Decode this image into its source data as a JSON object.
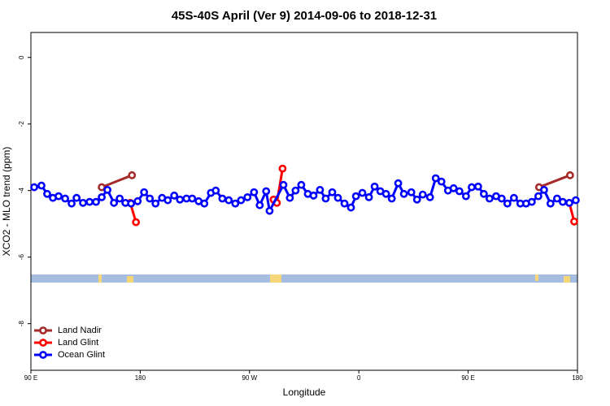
{
  "chart_data": {
    "type": "line",
    "title": "45S-40S April (Ver 9)   2014-09-06 to 2018-12-31",
    "xlabel": "Longitude",
    "ylabel": "XCO2 - MLO trend (ppm)",
    "xlim": [
      90,
      540
    ],
    "ylim": [
      -9.4,
      0.75
    ],
    "xticks": [
      {
        "value": 90,
        "label": "90 E"
      },
      180,
      {
        "value": 270,
        "label": "90 W"
      },
      {
        "value": 360,
        "label": "0"
      },
      {
        "value": 450,
        "label": "90 E"
      },
      {
        "value": 540,
        "label": "180"
      }
    ],
    "yticks": [
      0,
      -2,
      -4,
      -6,
      -8
    ],
    "legend": "bottom-left",
    "series": [
      {
        "name": "Land Nadir",
        "color": "#a52a2a",
        "x": [
          148.3,
          173.2,
          null,
          508.4,
          533.9
        ],
        "values": [
          -3.9,
          -3.54,
          null,
          -3.9,
          -3.54
        ]
      },
      {
        "name": "Land Glint",
        "color": "#ff0000",
        "x": [
          171.8,
          176.5,
          null,
          289.8,
          292.5,
          297.2,
          null,
          533.3,
          537.3
        ],
        "values": [
          -4.37,
          -4.95,
          null,
          -4.27,
          -4.37,
          -3.34,
          null,
          -4.37,
          -4.93
        ]
      },
      {
        "name": "Ocean Glint",
        "color": "#0000ff",
        "x": [
          92.7,
          98.7,
          103.4,
          108.1,
          112.8,
          118.2,
          123.5,
          127.6,
          132.9,
          138.3,
          143.6,
          148.3,
          153,
          158.4,
          163.1,
          167.8,
          172.5,
          177.9,
          183.2,
          187.9,
          192.6,
          198,
          202.7,
          208,
          212.7,
          218.1,
          222.8,
          228.1,
          232.8,
          238.2,
          242.2,
          247.6,
          252.9,
          258.3,
          263,
          268.3,
          273.7,
          278.4,
          283.7,
          286.5,
          297.9,
          303.2,
          307.9,
          312.6,
          318,
          322.7,
          328,
          332.7,
          338.1,
          342.8,
          348.2,
          353.5,
          357.6,
          362.9,
          368.3,
          373,
          377.7,
          382.4,
          387.1,
          392.4,
          397.1,
          403.2,
          407.9,
          412.6,
          418.6,
          423.3,
          428,
          433.4,
          438,
          442.8,
          448.2,
          452.9,
          458.2,
          462.9,
          467.6,
          473,
          477.6,
          482.3,
          487.7,
          493,
          497.7,
          502.4,
          507.8,
          512.5,
          517.8,
          523.2,
          527.9,
          533.3,
          538.6
        ],
        "values": [
          -3.9,
          -3.85,
          -4.1,
          -4.22,
          -4.17,
          -4.24,
          -4.39,
          -4.22,
          -4.37,
          -4.34,
          -4.34,
          -4.2,
          -3.98,
          -4.37,
          -4.24,
          -4.37,
          -4.39,
          -4.32,
          -4.05,
          -4.24,
          -4.39,
          -4.22,
          -4.29,
          -4.15,
          -4.27,
          -4.24,
          -4.24,
          -4.32,
          -4.39,
          -4.07,
          -4.0,
          -4.24,
          -4.29,
          -4.39,
          -4.29,
          -4.2,
          -4.05,
          -4.44,
          -4.02,
          -4.61,
          -3.83,
          -4.22,
          -4.0,
          -3.83,
          -4.1,
          -4.15,
          -3.98,
          -4.24,
          -4.05,
          -4.22,
          -4.39,
          -4.51,
          -4.17,
          -4.07,
          -4.2,
          -3.88,
          -4.02,
          -4.1,
          -4.24,
          -3.78,
          -4.1,
          -4.05,
          -4.27,
          -4.12,
          -4.2,
          -3.63,
          -3.73,
          -4.0,
          -3.93,
          -4.02,
          -4.17,
          -3.9,
          -3.88,
          -4.1,
          -4.24,
          -4.17,
          -4.24,
          -4.39,
          -4.22,
          -4.39,
          -4.39,
          -4.34,
          -4.17,
          -3.98,
          -4.39,
          -4.24,
          -4.34,
          -4.37,
          -4.29
        ]
      }
    ]
  }
}
